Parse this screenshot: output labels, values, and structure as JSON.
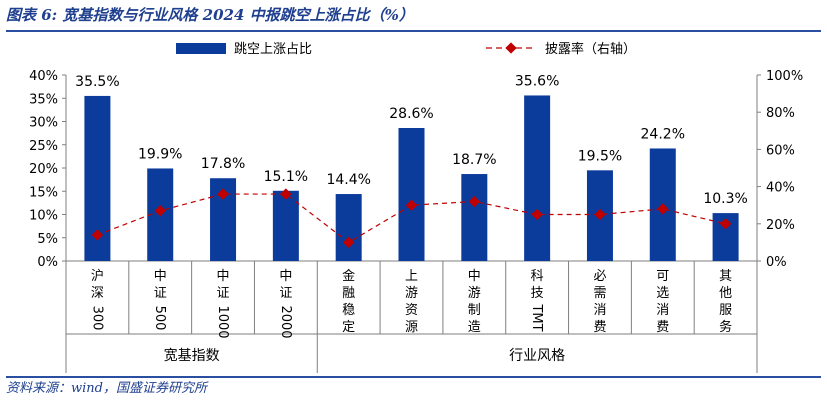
{
  "header": {
    "title": "图表 6:  宽基指数与行业风格 2024 中报跳空上涨占比（%）"
  },
  "footer": {
    "source": "资料来源：wind，国盛证券研究所"
  },
  "chart_data": {
    "type": "bar",
    "categories": [
      "沪深300",
      "中证500",
      "中证1000",
      "中证2000",
      "金融稳定",
      "上游资源",
      "中游制造",
      "科技TMT",
      "必需消费",
      "可选消费",
      "其他服务"
    ],
    "category_lines": [
      [
        "沪",
        "深",
        "300"
      ],
      [
        "中",
        "证",
        "500"
      ],
      [
        "中",
        "证",
        "1000"
      ],
      [
        "中",
        "证",
        "2000"
      ],
      [
        "金",
        "融",
        "稳",
        "定"
      ],
      [
        "上",
        "游",
        "资",
        "源"
      ],
      [
        "中",
        "游",
        "制",
        "造"
      ],
      [
        "科",
        "技",
        "TMT"
      ],
      [
        "必",
        "需",
        "消",
        "费"
      ],
      [
        "可",
        "选",
        "消",
        "费"
      ],
      [
        "其",
        "他",
        "服",
        "务"
      ]
    ],
    "groups": [
      {
        "label": "宽基指数",
        "start": 0,
        "end": 3
      },
      {
        "label": "行业风格",
        "start": 4,
        "end": 10
      }
    ],
    "series": [
      {
        "name": "跳空上涨占比",
        "type": "bar",
        "axis": "left",
        "color": "#0b3b9b",
        "values": [
          35.5,
          19.9,
          17.8,
          15.1,
          14.4,
          28.6,
          18.7,
          35.6,
          19.5,
          24.2,
          10.3
        ],
        "labels": [
          "35.5%",
          "19.9%",
          "17.8%",
          "15.1%",
          "14.4%",
          "28.6%",
          "18.7%",
          "35.6%",
          "19.5%",
          "24.2%",
          "10.3%"
        ]
      },
      {
        "name": "披露率（右轴）",
        "type": "line",
        "axis": "right",
        "color": "#c00000",
        "values": [
          14,
          27,
          36,
          36,
          10,
          30,
          32,
          25,
          25,
          28,
          20
        ]
      }
    ],
    "left_axis": {
      "min": 0,
      "max": 40,
      "step": 5,
      "ticks": [
        "0%",
        "5%",
        "10%",
        "15%",
        "20%",
        "25%",
        "30%",
        "35%",
        "40%"
      ]
    },
    "right_axis": {
      "min": 0,
      "max": 100,
      "step": 20,
      "ticks": [
        "0%",
        "20%",
        "40%",
        "60%",
        "80%",
        "100%"
      ]
    },
    "grid": false,
    "legend_position": "top"
  }
}
